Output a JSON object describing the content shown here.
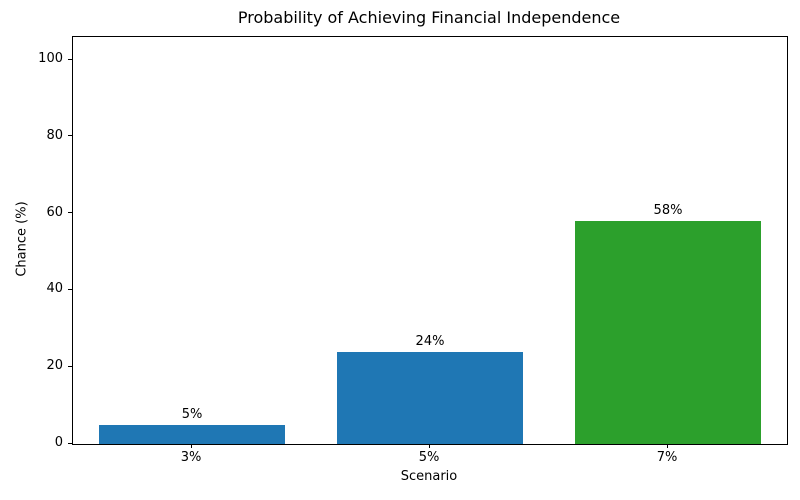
{
  "chart_data": {
    "type": "bar",
    "title": "Probability of Achieving Financial Independence",
    "xlabel": "Scenario",
    "ylabel": "Chance (%)",
    "categories": [
      "3%",
      "5%",
      "7%"
    ],
    "values": [
      5,
      24,
      58
    ],
    "bar_labels": [
      "5%",
      "24%",
      "58%"
    ],
    "bar_colors": [
      "#1f77b4",
      "#1f77b4",
      "#2ca02c"
    ],
    "ylim": [
      0,
      106
    ],
    "yticks": [
      0,
      20,
      40,
      60,
      80,
      100
    ],
    "grid": false,
    "legend": null,
    "background_color": "#ffffff",
    "spine_color": "#000000",
    "text_color": "#000000"
  }
}
